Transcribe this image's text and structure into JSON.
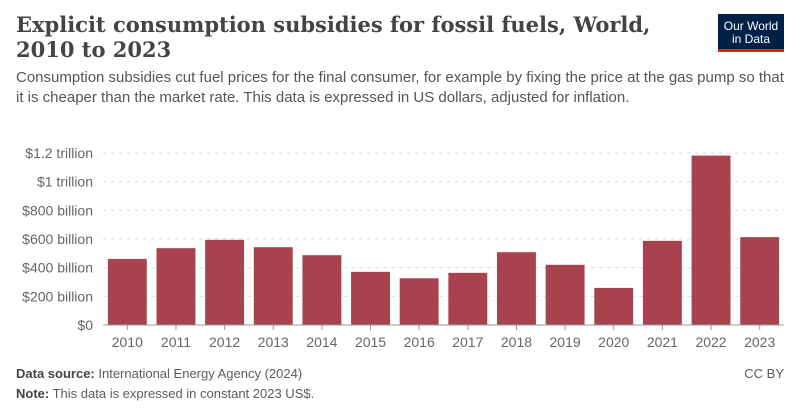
{
  "header": {
    "title": "Explicit consumption subsidies for fossil fuels, World, 2010 to 2023",
    "subtitle": "Consumption subsidies cut fuel prices for the final consumer, for example by fixing the price at the gas pump so that it is cheaper than the market rate. This data is expressed in US dollars, adjusted for inflation.",
    "logo": "Our World in Data"
  },
  "footer": {
    "source_label": "Data source:",
    "source": "International Energy Agency (2024)",
    "note_label": "Note:",
    "note": "This data is expressed in constant 2023 US$.",
    "license": "CC BY"
  },
  "colors": {
    "bar": "#a8424f",
    "logo_bg": "#002147",
    "logo_accent": "#ce261e"
  },
  "chart_data": {
    "type": "bar",
    "categories": [
      "2010",
      "2011",
      "2012",
      "2013",
      "2014",
      "2015",
      "2016",
      "2017",
      "2018",
      "2019",
      "2020",
      "2021",
      "2022",
      "2023"
    ],
    "values": [
      461000000000.0,
      536000000000.0,
      594000000000.0,
      543000000000.0,
      487000000000.0,
      371000000000.0,
      326000000000.0,
      364000000000.0,
      508000000000.0,
      420000000000.0,
      259000000000.0,
      587000000000.0,
      1182000000000.0,
      613000000000.0
    ],
    "ylim": [
      0,
      1200000000000.0
    ],
    "yticks": [
      0,
      200000000000.0,
      400000000000.0,
      600000000000.0,
      800000000000.0,
      1000000000000.0,
      1200000000000.0
    ],
    "ytick_labels": [
      "$0",
      "$200 billion",
      "$400 billion",
      "$600 billion",
      "$800 billion",
      "$1 trillion",
      "$1.2 trillion"
    ],
    "grid": true,
    "title": "Explicit consumption subsidies for fossil fuels, World, 2010 to 2023"
  }
}
